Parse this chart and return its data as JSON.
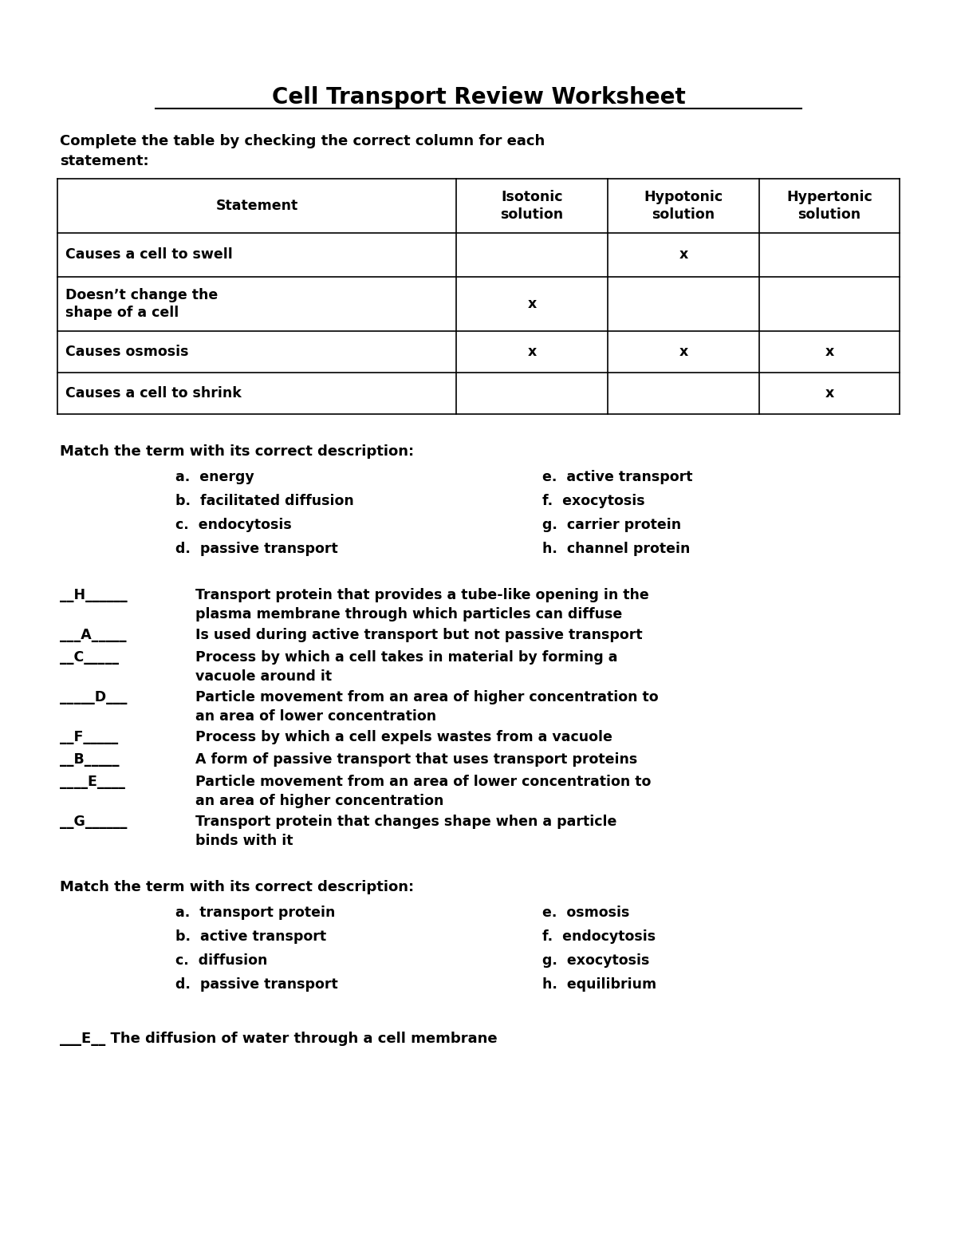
{
  "title": "Cell Transport Review Worksheet",
  "bg_color": "#ffffff",
  "text_color": "#000000",
  "title_fontsize": 20,
  "body_fontsize": 13,
  "small_fontsize": 12.5,
  "table": {
    "headers": [
      "Statement",
      "Isotonic\nsolution",
      "Hypotonic\nsolution",
      "Hypertonic\nsolution"
    ],
    "rows": [
      [
        "Causes a cell to swell",
        "",
        "x",
        ""
      ],
      [
        "Doesn’t change the\nshape of a cell",
        "x",
        "",
        ""
      ],
      [
        "Causes osmosis",
        "x",
        "x",
        "x"
      ],
      [
        "Causes a cell to shrink",
        "",
        "",
        "x"
      ]
    ]
  },
  "intro_text": "Complete the table by checking the correct column for each\nstatement:",
  "section1_header": "Match the term with its correct description:",
  "section1_terms_left": [
    "a.  energy",
    "b.  facilitated diffusion",
    "c.  endocytosis",
    "d.  passive transport"
  ],
  "section1_terms_right": [
    "e.  active transport",
    "f.  exocytosis",
    "g.  carrier protein",
    "h.  channel protein"
  ],
  "section1_matches": [
    [
      "__H______",
      "Transport protein that provides a tube-like opening in the\nplasma membrane through which particles can diffuse"
    ],
    [
      "___A_____",
      "Is used during active transport but not passive transport"
    ],
    [
      "__C_____",
      "Process by which a cell takes in material by forming a\nvacuole around it"
    ],
    [
      "_____D___",
      "Particle movement from an area of higher concentration to\nan area of lower concentration"
    ],
    [
      "__F_____",
      "Process by which a cell expels wastes from a vacuole"
    ],
    [
      "__B_____",
      "A form of passive transport that uses transport proteins"
    ],
    [
      "____E____",
      "Particle movement from an area of lower concentration to\nan area of higher concentration"
    ],
    [
      "__G______",
      "Transport protein that changes shape when a particle\nbinds with it"
    ]
  ],
  "section2_header": "Match the term with its correct description:",
  "section2_terms_left": [
    "a.  transport protein",
    "b.  active transport",
    "c.  diffusion",
    "d.  passive transport"
  ],
  "section2_terms_right": [
    "e.  osmosis",
    "f.  endocytosis",
    "g.  exocytosis",
    "h.  equilibrium"
  ],
  "section2_final": "___E__ The diffusion of water through a cell membrane"
}
